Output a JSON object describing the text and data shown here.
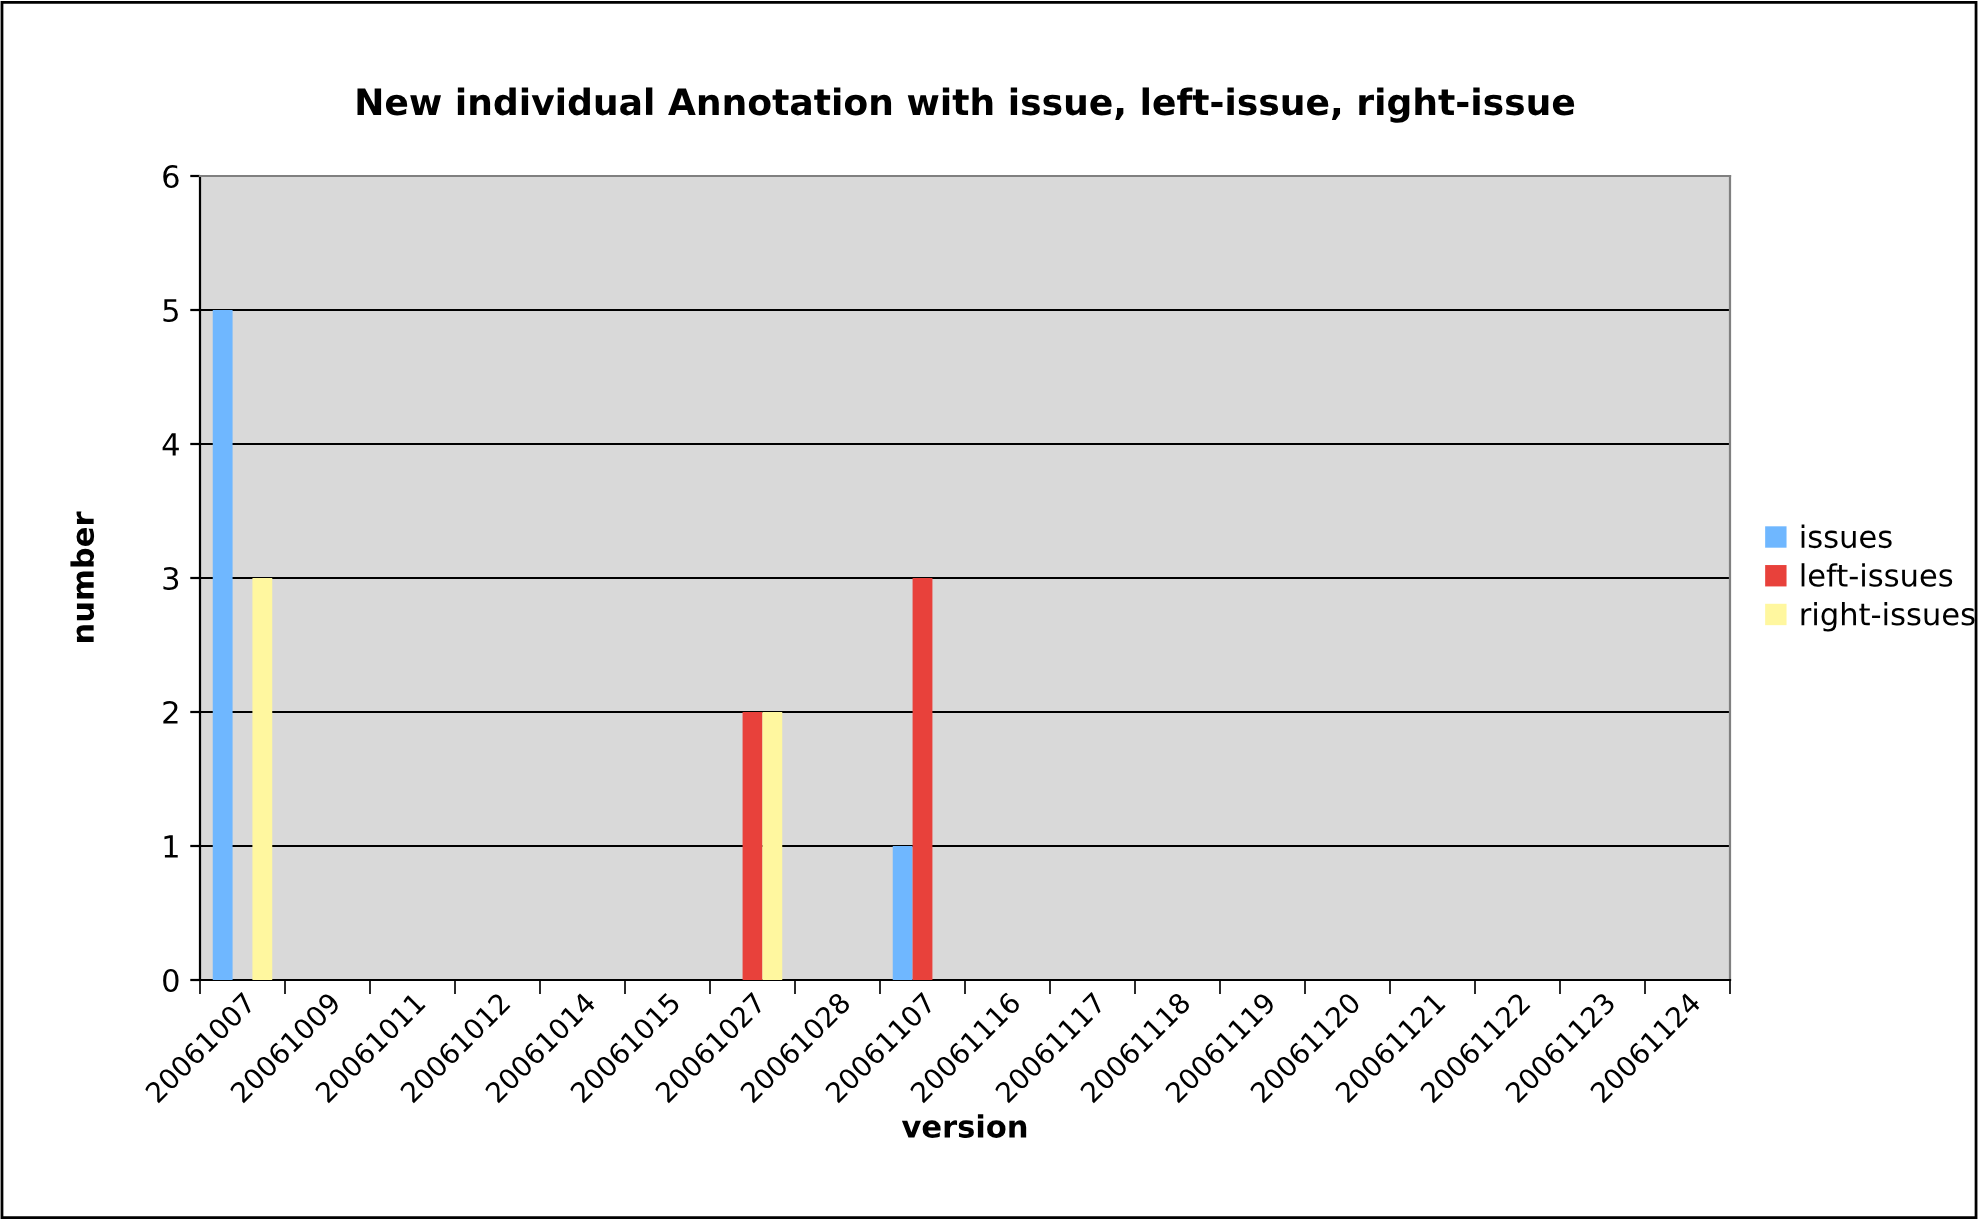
{
  "chart_data": {
    "type": "bar",
    "title": "New individual Annotation with issue, left-issue, right-issue",
    "xlabel": "version",
    "ylabel": "number",
    "categories": [
      "20061007",
      "20061009",
      "20061011",
      "20061012",
      "20061014",
      "20061015",
      "20061027",
      "20061028",
      "20061107",
      "20061116",
      "20061117",
      "20061118",
      "20061119",
      "20061120",
      "20061121",
      "20061122",
      "20061123",
      "20061124"
    ],
    "series": [
      {
        "name": "issues",
        "color": "#6fb7ff",
        "values": [
          5,
          0,
          0,
          0,
          0,
          0,
          0,
          0,
          1,
          0,
          0,
          0,
          0,
          0,
          0,
          0,
          0,
          0
        ]
      },
      {
        "name": "left-issues",
        "color": "#e8413b",
        "values": [
          0,
          0,
          0,
          0,
          0,
          0,
          2,
          0,
          3,
          0,
          0,
          0,
          0,
          0,
          0,
          0,
          0,
          0
        ]
      },
      {
        "name": "right-issues",
        "color": "#fff79f",
        "values": [
          3,
          0,
          0,
          0,
          0,
          0,
          2,
          0,
          0,
          0,
          0,
          0,
          0,
          0,
          0,
          0,
          0,
          0
        ]
      }
    ],
    "ylim": [
      0,
      6
    ],
    "yticks": [
      0,
      1,
      2,
      3,
      4,
      5,
      6
    ],
    "grid": "y",
    "legend": "right"
  }
}
